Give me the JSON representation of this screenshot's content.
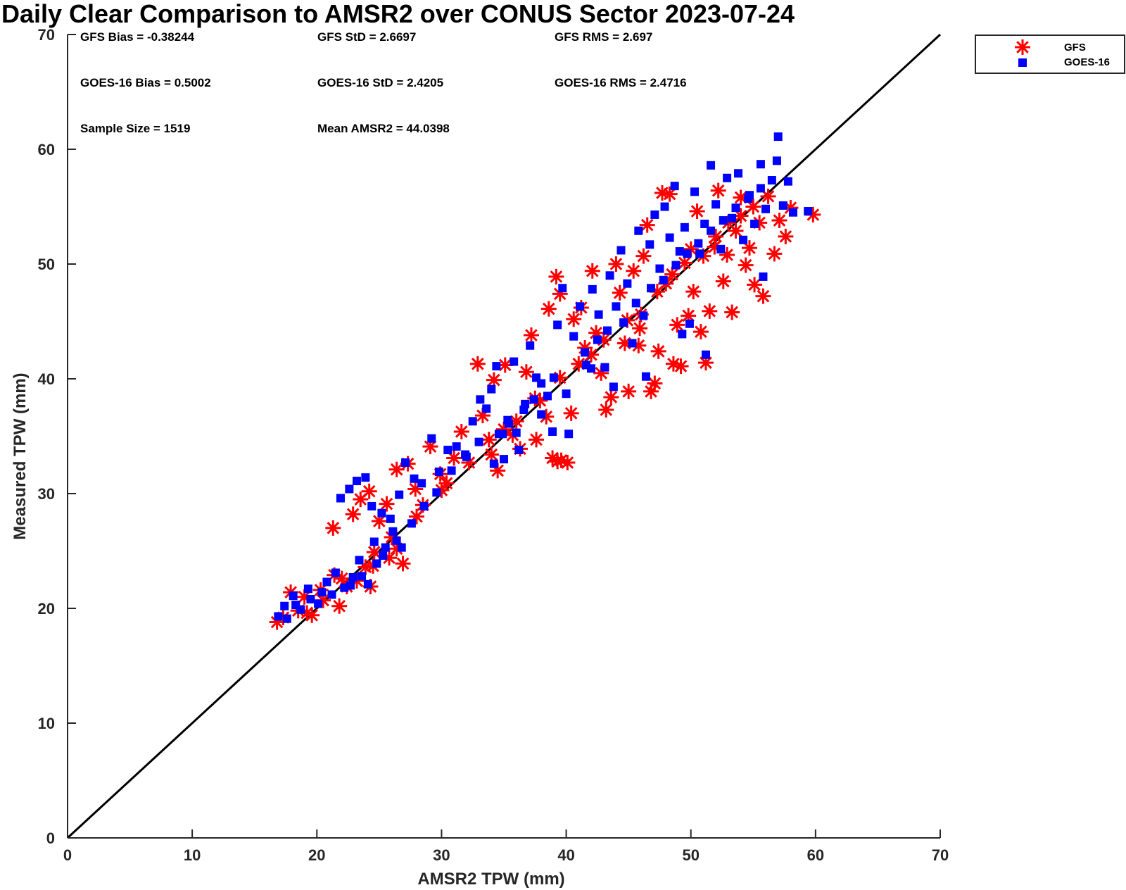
{
  "chart_data": {
    "type": "scatter",
    "title": "Daily Clear Comparison to AMSR2 over CONUS Sector 2023-07-24",
    "xlabel": "AMSR2 TPW (mm)",
    "ylabel": "Measured TPW (mm)",
    "xlim": [
      0,
      70
    ],
    "ylim": [
      0,
      70
    ],
    "x_ticks": [
      "0",
      "10",
      "20",
      "30",
      "40",
      "50",
      "60",
      "70"
    ],
    "y_ticks": [
      "0",
      "10",
      "20",
      "30",
      "40",
      "50",
      "60",
      "70"
    ],
    "reference_line": {
      "type": "one-to-one",
      "color": "#000000"
    },
    "legend_position": "outside-top-right",
    "stats": [
      [
        "GFS Bias = -0.38244",
        "GFS StD = 2.6697",
        "GFS RMS = 2.697"
      ],
      [
        "GOES-16 Bias = 0.5002",
        "GOES-16 StD = 2.4205",
        "GOES-16 RMS = 2.4716"
      ],
      [
        "Sample Size = 1519",
        "Mean AMSR2 = 44.0398"
      ]
    ],
    "series": [
      {
        "name": "GFS",
        "marker": "asterisk",
        "color": "#ff0000",
        "points": [
          [
            16.8,
            18.8
          ],
          [
            17.3,
            19.2
          ],
          [
            17.9,
            21.4
          ],
          [
            18.5,
            19.8
          ],
          [
            19.0,
            21.0
          ],
          [
            19.6,
            19.4
          ],
          [
            20.3,
            21.6
          ],
          [
            21.4,
            22.9
          ],
          [
            21.8,
            20.2
          ],
          [
            22.4,
            21.9
          ],
          [
            23.2,
            22.4
          ],
          [
            23.9,
            23.6
          ],
          [
            24.3,
            21.9
          ],
          [
            24.6,
            24.9
          ],
          [
            25.0,
            27.6
          ],
          [
            25.8,
            24.4
          ],
          [
            26.4,
            25.2
          ],
          [
            26.9,
            23.9
          ],
          [
            21.3,
            27.0
          ],
          [
            22.9,
            28.2
          ],
          [
            23.5,
            29.5
          ],
          [
            24.2,
            30.2
          ],
          [
            25.6,
            29.1
          ],
          [
            26.4,
            32.1
          ],
          [
            27.3,
            32.6
          ],
          [
            27.9,
            30.4
          ],
          [
            28.5,
            29.0
          ],
          [
            29.1,
            34.1
          ],
          [
            29.9,
            31.7
          ],
          [
            30.4,
            30.9
          ],
          [
            31.0,
            33.1
          ],
          [
            31.6,
            35.4
          ],
          [
            32.2,
            32.7
          ],
          [
            32.9,
            41.3
          ],
          [
            33.3,
            36.8
          ],
          [
            33.8,
            34.7
          ],
          [
            34.2,
            39.9
          ],
          [
            34.5,
            32.0
          ],
          [
            35.1,
            41.2
          ],
          [
            35.7,
            35.1
          ],
          [
            36.3,
            33.9
          ],
          [
            36.8,
            40.6
          ],
          [
            37.2,
            43.8
          ],
          [
            37.6,
            34.7
          ],
          [
            37.9,
            38.1
          ],
          [
            38.4,
            36.7
          ],
          [
            38.9,
            33.1
          ],
          [
            39.3,
            32.8
          ],
          [
            39.6,
            32.9
          ],
          [
            40.1,
            32.7
          ],
          [
            40.4,
            37.0
          ],
          [
            38.6,
            46.1
          ],
          [
            39.2,
            48.9
          ],
          [
            39.5,
            47.4
          ],
          [
            40.6,
            45.2
          ],
          [
            41.2,
            46.2
          ],
          [
            41.5,
            42.7
          ],
          [
            42.1,
            49.4
          ],
          [
            42.4,
            44.0
          ],
          [
            42.8,
            40.5
          ],
          [
            43.2,
            37.3
          ],
          [
            43.6,
            38.4
          ],
          [
            44.0,
            50.0
          ],
          [
            44.3,
            47.5
          ],
          [
            44.7,
            43.1
          ],
          [
            45.0,
            38.9
          ],
          [
            45.4,
            49.4
          ],
          [
            45.8,
            42.9
          ],
          [
            46.2,
            50.7
          ],
          [
            46.5,
            53.4
          ],
          [
            46.8,
            38.9
          ],
          [
            47.1,
            39.6
          ],
          [
            47.4,
            42.4
          ],
          [
            47.7,
            56.2
          ],
          [
            48.0,
            48.3
          ],
          [
            48.3,
            56.1
          ],
          [
            48.6,
            41.3
          ],
          [
            48.9,
            44.7
          ],
          [
            49.2,
            41.1
          ],
          [
            49.5,
            50.1
          ],
          [
            49.8,
            45.5
          ],
          [
            50.2,
            47.6
          ],
          [
            50.5,
            54.6
          ],
          [
            50.8,
            44.1
          ],
          [
            51.2,
            41.4
          ],
          [
            51.5,
            45.9
          ],
          [
            51.9,
            51.5
          ],
          [
            52.2,
            56.4
          ],
          [
            52.6,
            48.5
          ],
          [
            52.9,
            50.8
          ],
          [
            53.3,
            45.8
          ],
          [
            53.6,
            52.9
          ],
          [
            54.0,
            55.8
          ],
          [
            54.4,
            49.9
          ],
          [
            54.7,
            51.4
          ],
          [
            55.1,
            48.2
          ],
          [
            55.5,
            53.6
          ],
          [
            55.8,
            47.2
          ],
          [
            56.2,
            55.9
          ],
          [
            56.7,
            50.9
          ],
          [
            57.1,
            53.8
          ],
          [
            57.6,
            52.4
          ],
          [
            58.0,
            54.9
          ],
          [
            59.8,
            54.3
          ],
          [
            44.9,
            45.1
          ],
          [
            46.0,
            45.6
          ],
          [
            47.3,
            47.6
          ],
          [
            48.5,
            49.1
          ],
          [
            50.0,
            51.3
          ],
          [
            51.0,
            50.7
          ],
          [
            52.0,
            52.4
          ],
          [
            53.0,
            53.6
          ],
          [
            54.0,
            54.2
          ],
          [
            55.0,
            55.0
          ],
          [
            41.0,
            41.3
          ],
          [
            42.0,
            42.1
          ],
          [
            43.0,
            43.4
          ],
          [
            36.0,
            36.3
          ],
          [
            35.0,
            35.6
          ],
          [
            34.0,
            33.4
          ],
          [
            30.0,
            30.3
          ],
          [
            28.0,
            28.0
          ],
          [
            26.0,
            26.2
          ],
          [
            24.5,
            23.7
          ],
          [
            22.0,
            22.6
          ],
          [
            20.5,
            20.7
          ],
          [
            19.2,
            19.6
          ],
          [
            39.5,
            40.1
          ],
          [
            37.5,
            38.3
          ],
          [
            45.9,
            44.4
          ]
        ]
      },
      {
        "name": "GOES-16",
        "marker": "square",
        "color": "#0000ff",
        "points": [
          [
            16.9,
            19.3
          ],
          [
            17.4,
            20.2
          ],
          [
            18.1,
            21.1
          ],
          [
            18.7,
            19.9
          ],
          [
            19.3,
            21.7
          ],
          [
            20.1,
            20.4
          ],
          [
            20.8,
            22.3
          ],
          [
            21.5,
            23.1
          ],
          [
            22.2,
            21.8
          ],
          [
            22.9,
            22.7
          ],
          [
            23.4,
            24.2
          ],
          [
            24.1,
            22.1
          ],
          [
            24.6,
            25.8
          ],
          [
            25.3,
            24.6
          ],
          [
            26.1,
            26.7
          ],
          [
            26.8,
            25.3
          ],
          [
            21.9,
            29.6
          ],
          [
            22.6,
            30.4
          ],
          [
            23.2,
            31.1
          ],
          [
            23.9,
            31.4
          ],
          [
            24.4,
            28.9
          ],
          [
            25.2,
            28.3
          ],
          [
            25.9,
            27.8
          ],
          [
            26.6,
            29.9
          ],
          [
            27.1,
            32.7
          ],
          [
            27.8,
            31.3
          ],
          [
            28.4,
            30.9
          ],
          [
            29.2,
            34.8
          ],
          [
            29.8,
            31.9
          ],
          [
            30.5,
            33.8
          ],
          [
            31.2,
            34.1
          ],
          [
            31.9,
            33.4
          ],
          [
            32.5,
            36.3
          ],
          [
            33.1,
            38.2
          ],
          [
            33.6,
            37.4
          ],
          [
            34.0,
            39.1
          ],
          [
            34.4,
            41.1
          ],
          [
            34.9,
            35.2
          ],
          [
            35.3,
            36.4
          ],
          [
            35.8,
            41.5
          ],
          [
            36.2,
            33.8
          ],
          [
            36.7,
            37.8
          ],
          [
            37.1,
            42.9
          ],
          [
            37.6,
            40.1
          ],
          [
            38.0,
            36.9
          ],
          [
            38.5,
            38.5
          ],
          [
            38.9,
            35.4
          ],
          [
            39.3,
            44.7
          ],
          [
            39.7,
            47.9
          ],
          [
            40.2,
            35.2
          ],
          [
            40.6,
            43.7
          ],
          [
            41.1,
            46.3
          ],
          [
            41.6,
            41.2
          ],
          [
            42.1,
            47.8
          ],
          [
            42.6,
            45.6
          ],
          [
            43.1,
            41.0
          ],
          [
            43.5,
            49.0
          ],
          [
            44.0,
            46.3
          ],
          [
            44.4,
            51.2
          ],
          [
            44.9,
            48.3
          ],
          [
            45.3,
            43.1
          ],
          [
            45.8,
            52.9
          ],
          [
            46.2,
            45.5
          ],
          [
            46.7,
            51.7
          ],
          [
            47.1,
            54.3
          ],
          [
            47.5,
            49.6
          ],
          [
            47.9,
            55.0
          ],
          [
            48.3,
            52.3
          ],
          [
            48.7,
            56.8
          ],
          [
            49.1,
            51.1
          ],
          [
            49.5,
            53.2
          ],
          [
            49.9,
            44.8
          ],
          [
            50.3,
            56.3
          ],
          [
            50.7,
            50.9
          ],
          [
            51.1,
            53.5
          ],
          [
            51.6,
            58.6
          ],
          [
            52.0,
            55.2
          ],
          [
            52.4,
            51.3
          ],
          [
            52.9,
            57.5
          ],
          [
            53.3,
            54.0
          ],
          [
            53.8,
            57.9
          ],
          [
            54.2,
            52.1
          ],
          [
            54.7,
            56.0
          ],
          [
            55.1,
            53.5
          ],
          [
            55.6,
            58.7
          ],
          [
            56.0,
            54.8
          ],
          [
            56.5,
            57.3
          ],
          [
            56.9,
            59.0
          ],
          [
            57.4,
            55.1
          ],
          [
            57.8,
            57.2
          ],
          [
            58.2,
            54.5
          ],
          [
            59.4,
            54.6
          ],
          [
            57.0,
            61.1
          ],
          [
            55.8,
            48.9
          ],
          [
            51.2,
            42.1
          ],
          [
            49.3,
            43.9
          ],
          [
            46.4,
            40.2
          ],
          [
            43.8,
            39.3
          ],
          [
            42.0,
            40.9
          ],
          [
            40.0,
            38.7
          ],
          [
            38.0,
            39.6
          ],
          [
            36.0,
            35.3
          ],
          [
            35.0,
            33.0
          ],
          [
            34.2,
            32.6
          ],
          [
            33.0,
            34.5
          ],
          [
            32.0,
            33.2
          ],
          [
            30.8,
            32.0
          ],
          [
            29.6,
            30.1
          ],
          [
            28.6,
            28.9
          ],
          [
            27.6,
            27.4
          ],
          [
            26.4,
            25.9
          ],
          [
            25.5,
            25.3
          ],
          [
            24.8,
            23.9
          ],
          [
            23.6,
            22.8
          ],
          [
            22.7,
            22.0
          ],
          [
            21.2,
            21.2
          ],
          [
            20.4,
            21.4
          ],
          [
            19.5,
            20.8
          ],
          [
            18.3,
            20.3
          ],
          [
            17.6,
            19.1
          ],
          [
            44.6,
            44.9
          ],
          [
            45.6,
            46.6
          ],
          [
            46.8,
            47.9
          ],
          [
            47.8,
            48.6
          ],
          [
            48.8,
            49.9
          ],
          [
            49.7,
            50.9
          ],
          [
            50.6,
            51.8
          ],
          [
            51.6,
            52.9
          ],
          [
            52.6,
            53.8
          ],
          [
            53.6,
            54.9
          ],
          [
            54.6,
            55.7
          ],
          [
            55.6,
            56.6
          ],
          [
            41.5,
            42.3
          ],
          [
            42.5,
            43.4
          ],
          [
            43.3,
            44.2
          ],
          [
            39.0,
            40.1
          ],
          [
            37.4,
            38.2
          ],
          [
            36.6,
            37.3
          ],
          [
            35.4,
            36.1
          ],
          [
            34.6,
            35.2
          ]
        ]
      }
    ]
  }
}
